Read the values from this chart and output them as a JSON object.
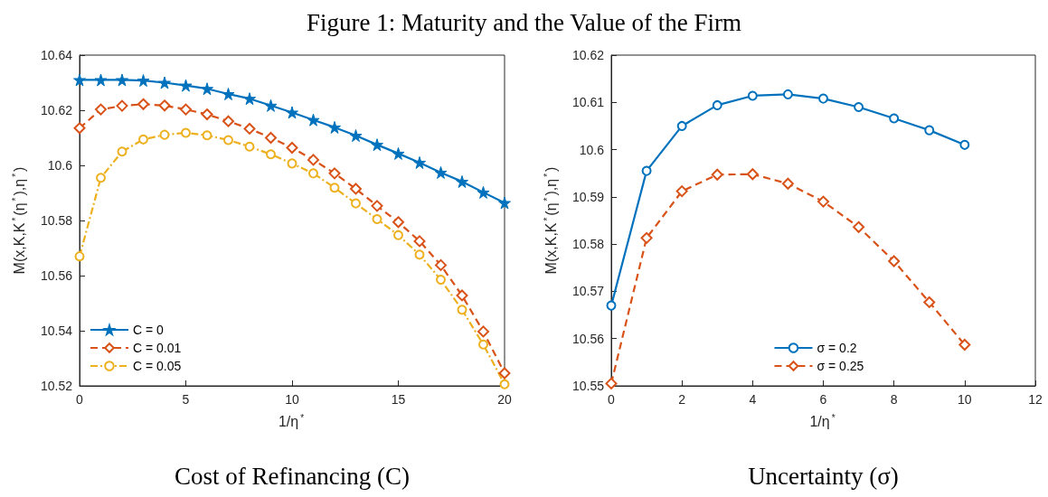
{
  "chart_data": [
    {
      "type": "line",
      "title": "Figure 1: Maturity and the Value of the Firm",
      "subtitle": "Cost of Refinancing (C)",
      "xlabel": "1/η$^{*}$",
      "ylabel": "M(x,K,K$^{*}$(η$^{*}$),η$^{*}$)",
      "x": [
        0,
        1,
        2,
        3,
        4,
        5,
        6,
        7,
        8,
        9,
        10,
        11,
        12,
        13,
        14,
        15,
        16,
        17,
        18,
        19,
        20
      ],
      "series": [
        {
          "name": "C = 0",
          "color": "#0072bd",
          "marker": "star",
          "line_style": "solid",
          "values": [
            10.631,
            10.631,
            10.631,
            10.6308,
            10.63,
            10.629,
            10.6278,
            10.6259,
            10.6242,
            10.6217,
            10.6192,
            10.6165,
            10.6138,
            10.6108,
            10.6075,
            10.6043,
            10.601,
            10.5974,
            10.5941,
            10.5902,
            10.5864
          ]
        },
        {
          "name": "C = 0.01",
          "color": "#d95319",
          "marker": "diamond",
          "line_style": "dashed",
          "values": [
            10.6135,
            10.6203,
            10.6216,
            10.6222,
            10.6217,
            10.6203,
            10.6185,
            10.616,
            10.6133,
            10.61,
            10.6064,
            10.602,
            10.5971,
            10.5915,
            10.5853,
            10.5794,
            10.5725,
            10.5638,
            10.5528,
            10.5397,
            10.5246
          ]
        },
        {
          "name": "C = 0.05",
          "color": "#edb120",
          "marker": "circle",
          "line_style": "dotted",
          "values": [
            10.567,
            10.5955,
            10.605,
            10.6094,
            10.6111,
            10.6118,
            10.6109,
            10.6092,
            10.6068,
            10.604,
            10.6007,
            10.5971,
            10.5919,
            10.5862,
            10.5805,
            10.5747,
            10.5676,
            10.5585,
            10.5476,
            10.535,
            10.5206
          ]
        }
      ],
      "xlim": [
        0,
        20
      ],
      "xticks": [
        0,
        5,
        10,
        15,
        20
      ],
      "ylim": [
        10.52,
        10.64
      ],
      "yticks": [
        10.52,
        10.54,
        10.56,
        10.58,
        10.6,
        10.62,
        10.64
      ],
      "grid": false,
      "legend": "bottom left"
    },
    {
      "type": "line",
      "subtitle": "Uncertainty (σ)",
      "xlabel": "1/η$^{*}$",
      "ylabel": "M(x,K,K$^{*}$(η$^{*}$),η$^{*}$)",
      "x": [
        0,
        1,
        2,
        3,
        4,
        5,
        6,
        7,
        8,
        9,
        10
      ],
      "series": [
        {
          "name": "σ = 0.2",
          "color": "#0072bd",
          "marker": "circle",
          "line_style": "solid",
          "values": [
            10.567,
            10.5955,
            10.605,
            10.6094,
            10.6114,
            10.6117,
            10.6108,
            10.609,
            10.6066,
            10.6041,
            10.601
          ]
        },
        {
          "name": "σ = 0.25",
          "color": "#d95319",
          "marker": "diamond",
          "line_style": "dashed",
          "values": [
            10.5505,
            10.5813,
            10.5912,
            10.5947,
            10.5948,
            10.5928,
            10.589,
            10.5836,
            10.5764,
            10.5677,
            10.5587
          ]
        }
      ],
      "xlim": [
        0,
        12
      ],
      "xticks": [
        0,
        2,
        4,
        6,
        8,
        10,
        12
      ],
      "ylim": [
        10.55,
        10.62
      ],
      "yticks": [
        10.55,
        10.56,
        10.57,
        10.58,
        10.59,
        10.6,
        10.61,
        10.62
      ],
      "grid": false,
      "legend": "bottom"
    }
  ]
}
